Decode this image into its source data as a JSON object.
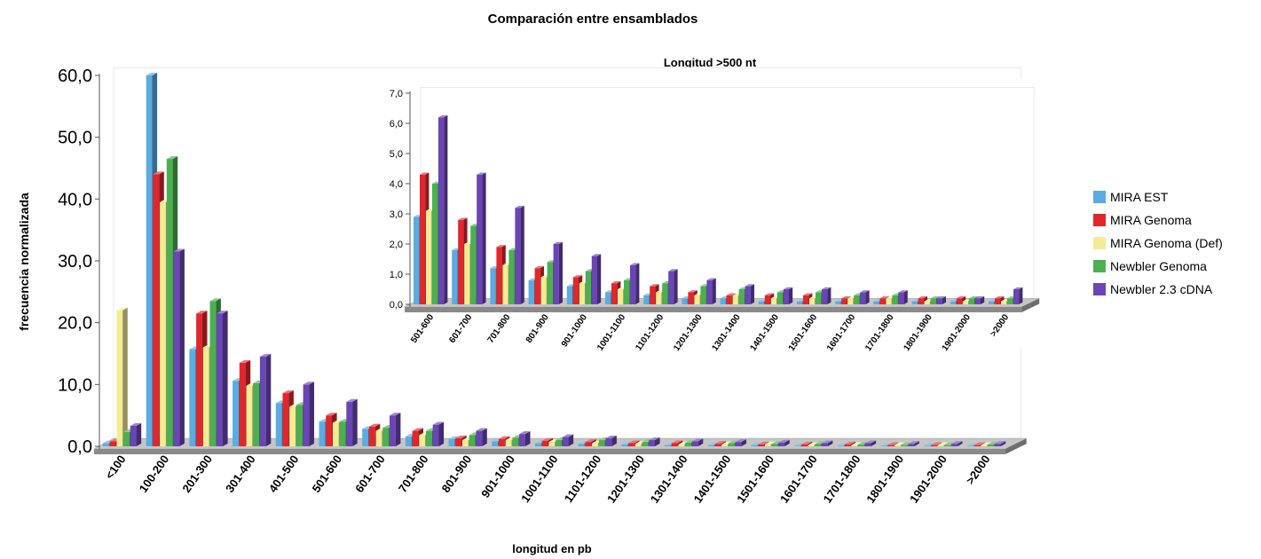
{
  "title": "Comparación entre ensamblados",
  "legend_position": "right",
  "chart_data": [
    {
      "type": "bar",
      "style": "3d-clustered",
      "ylabel": "frecuencia normalizada",
      "xlabel": "longitud en pb",
      "ylim": [
        0,
        60
      ],
      "yticks": [
        "0,0",
        "10,0",
        "20,0",
        "30,0",
        "40,0",
        "50,0",
        "60,0"
      ],
      "grid": false,
      "categories": [
        "<100",
        "100-200",
        "201-300",
        "301-400",
        "401-500",
        "501-600",
        "601-700",
        "701-800",
        "801-900",
        "901-1000",
        "1001-1100",
        "1101-1200",
        "1201-1300",
        "1301-1400",
        "1401-1500",
        "1501-1600",
        "1601-1700",
        "1701-1800",
        "1801-1900",
        "1901-2000",
        ">2000"
      ],
      "series": [
        {
          "name": "MIRA EST",
          "values": [
            0.5,
            60.0,
            15.7,
            10.6,
            7.0,
            4.0,
            2.8,
            1.6,
            1.2,
            0.8,
            0.5,
            0.4,
            0.3,
            0.2,
            0.2,
            0.2,
            0.1,
            0.1,
            0.1,
            0.1,
            0.1
          ]
        },
        {
          "name": "MIRA Genoma",
          "values": [
            0.8,
            44.0,
            21.5,
            13.5,
            8.6,
            5.0,
            3.2,
            2.5,
            1.3,
            1.2,
            0.9,
            0.7,
            0.5,
            0.5,
            0.4,
            0.3,
            0.3,
            0.3,
            0.2,
            0.2,
            0.2
          ]
        },
        {
          "name": "MIRA Genoma (Def)",
          "values": [
            22.0,
            39.5,
            16.0,
            9.8,
            6.4,
            3.8,
            2.5,
            1.8,
            1.0,
            1.0,
            0.7,
            0.5,
            0.4,
            0.3,
            0.3,
            0.3,
            0.2,
            0.2,
            0.2,
            0.2,
            0.2
          ]
        },
        {
          "name": "Newbler Genoma",
          "values": [
            2.3,
            46.5,
            23.5,
            10.2,
            6.7,
            4.0,
            3.0,
            2.5,
            1.8,
            1.4,
            1.0,
            1.0,
            0.7,
            0.6,
            0.5,
            0.4,
            0.4,
            0.3,
            0.2,
            0.2,
            0.3
          ]
        },
        {
          "name": "Newbler 2.3 cDNA",
          "values": [
            3.3,
            31.5,
            21.5,
            14.5,
            10.0,
            7.2,
            5.0,
            3.5,
            2.5,
            2.0,
            1.5,
            1.3,
            1.0,
            0.8,
            0.7,
            0.6,
            0.5,
            0.5,
            0.4,
            0.4,
            0.4
          ]
        }
      ]
    },
    {
      "type": "bar",
      "style": "3d-clustered",
      "title": "Longitud >500 nt",
      "ylim": [
        0,
        7
      ],
      "yticks": [
        "0,0",
        "1,0",
        "2,0",
        "3,0",
        "4,0",
        "5,0",
        "6,0",
        "7,0"
      ],
      "grid": false,
      "categories": [
        "501-600",
        "601-700",
        "701-800",
        "801-900",
        "901-1000",
        "1001-1100",
        "1101-1200",
        "1201-1300",
        "1301-1400",
        "1401-1500",
        "1501-1600",
        "1601-1700",
        "1701-1800",
        "1801-1900",
        "1901-2000",
        ">2000"
      ],
      "series": [
        {
          "name": "MIRA EST",
          "values": [
            2.9,
            1.8,
            1.2,
            0.8,
            0.6,
            0.4,
            0.3,
            0.2,
            0.2,
            0.1,
            0.1,
            0.1,
            0.1,
            0.1,
            0.1,
            0.1
          ]
        },
        {
          "name": "MIRA Genoma",
          "values": [
            4.3,
            2.8,
            1.9,
            1.2,
            0.9,
            0.7,
            0.6,
            0.4,
            0.3,
            0.3,
            0.3,
            0.2,
            0.2,
            0.2,
            0.2,
            0.2
          ]
        },
        {
          "name": "MIRA Genoma (Def)",
          "values": [
            3.1,
            2.0,
            1.3,
            0.9,
            0.7,
            0.5,
            0.4,
            0.3,
            0.3,
            0.2,
            0.2,
            0.2,
            0.2,
            0.1,
            0.1,
            0.1
          ]
        },
        {
          "name": "Newbler Genoma",
          "values": [
            4.0,
            2.6,
            1.8,
            1.4,
            1.1,
            0.8,
            0.7,
            0.6,
            0.5,
            0.4,
            0.4,
            0.3,
            0.3,
            0.2,
            0.2,
            0.2
          ]
        },
        {
          "name": "Newbler 2.3 cDNA",
          "values": [
            6.2,
            4.3,
            3.2,
            2.0,
            1.6,
            1.3,
            1.1,
            0.8,
            0.6,
            0.5,
            0.5,
            0.4,
            0.4,
            0.2,
            0.2,
            0.5
          ]
        }
      ]
    }
  ],
  "colors": {
    "MIRA EST": "#5aace2",
    "MIRA Genoma": "#e2262c",
    "MIRA Genoma (Def)": "#f3ec94",
    "Newbler Genoma": "#4cb050",
    "Newbler 2.3 cDNA": "#6a45b5",
    "floor_top": "#c6c6c6",
    "floor_front": "#8a8a8a",
    "axis": "#555555"
  }
}
